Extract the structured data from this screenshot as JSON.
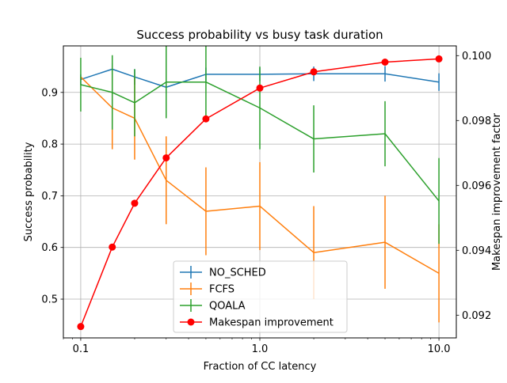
{
  "chart_data": {
    "type": "line",
    "title": "Success probability vs busy task duration",
    "xlabel": "Fraction of CC latency",
    "ylabel": "Success probability",
    "y2label": "Makespan improvement factor",
    "xscale": "log",
    "xlim": [
      0.08,
      12.5
    ],
    "ylim": [
      0.425,
      0.99
    ],
    "y2lim": [
      0.0913,
      0.1003
    ],
    "xticks": [
      0.1,
      1.0,
      10.0
    ],
    "xtick_labels": [
      "0.1",
      "1.0",
      "10.0"
    ],
    "yticks": [
      0.5,
      0.6,
      0.7,
      0.8,
      0.9
    ],
    "ytick_labels": [
      "0.5",
      "0.6",
      "0.7",
      "0.8",
      "0.9"
    ],
    "y2ticks": [
      0.092,
      0.094,
      0.096,
      0.098,
      0.1
    ],
    "y2tick_labels": [
      "0.092",
      "0.094",
      "0.096",
      "0.098",
      "0.100"
    ],
    "grid": true,
    "legend_position": "lower center",
    "x": [
      0.1,
      0.15,
      0.2,
      0.3,
      0.5,
      1.0,
      2.0,
      5.0,
      10.0
    ],
    "series": [
      {
        "name": "NO_SCHED",
        "axis": "left",
        "color": "#1f77b4",
        "values": [
          0.925,
          0.945,
          0.93,
          0.91,
          0.935,
          0.935,
          0.936,
          0.936,
          0.92
        ],
        "errors": [
          0.01,
          0.012,
          0.015,
          0.012,
          0.013,
          0.013,
          0.014,
          0.015,
          0.017
        ]
      },
      {
        "name": "FCFS",
        "axis": "left",
        "color": "#ff7f0e",
        "values": [
          0.93,
          0.87,
          0.85,
          0.73,
          0.67,
          0.68,
          0.59,
          0.61,
          0.55
        ],
        "errors": [
          0.0,
          0.08,
          0.08,
          0.085,
          0.085,
          0.085,
          0.09,
          0.09,
          0.095
        ]
      },
      {
        "name": "QOALA",
        "axis": "left",
        "color": "#2ca02c",
        "values": [
          0.915,
          0.9,
          0.88,
          0.92,
          0.92,
          0.87,
          0.81,
          0.82,
          0.69
        ],
        "errors": [
          0.052,
          0.072,
          0.065,
          0.07,
          0.07,
          0.08,
          0.065,
          0.063,
          0.083
        ]
      },
      {
        "name": "Makespan improvement",
        "axis": "right",
        "color": "#ff0000",
        "marker": "circle",
        "values": [
          0.09165,
          0.0941,
          0.09545,
          0.09685,
          0.09805,
          0.099,
          0.0995,
          0.0998,
          0.0999
        ]
      }
    ]
  }
}
